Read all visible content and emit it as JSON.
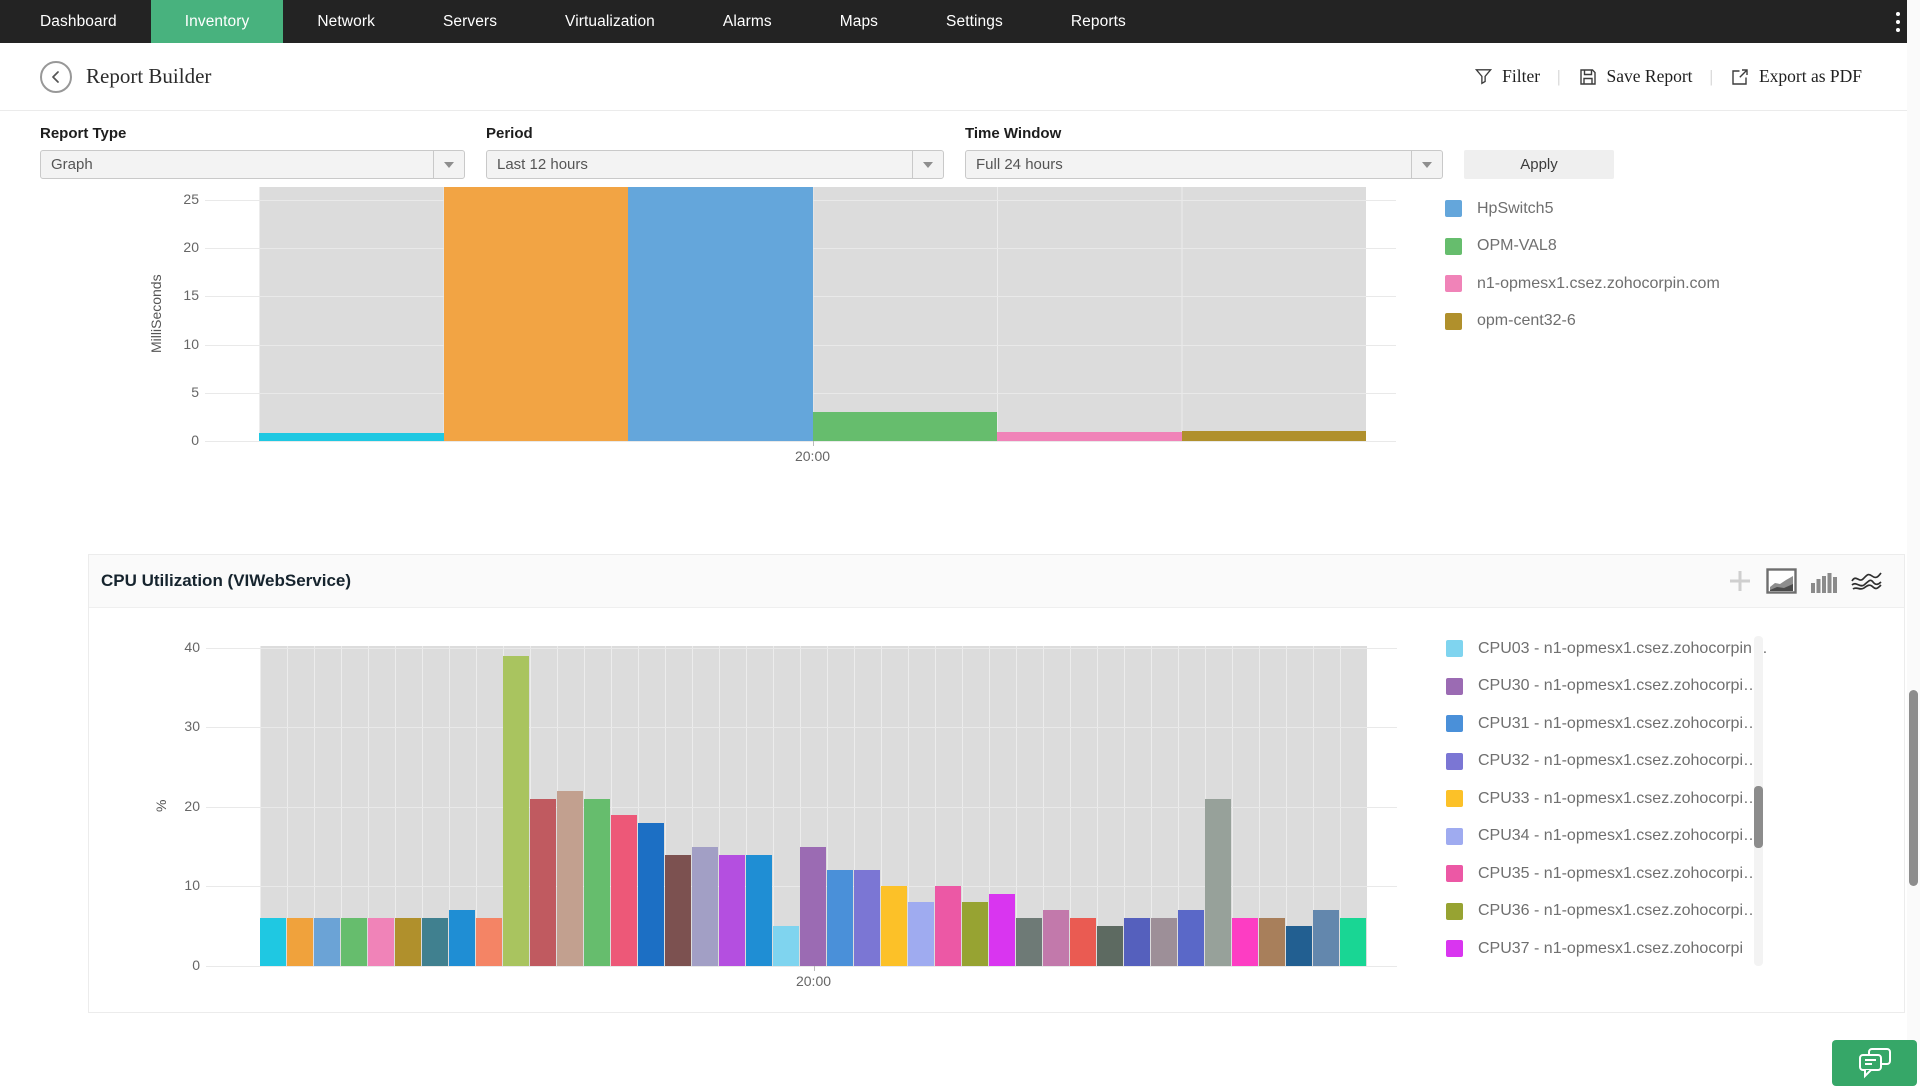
{
  "nav": {
    "background": "#232323",
    "active_color": "#48b27e",
    "kebab_icon": "kebab-menu-icon",
    "items": [
      {
        "label": "Dashboard",
        "active": false
      },
      {
        "label": "Inventory",
        "active": true
      },
      {
        "label": "Network",
        "active": false
      },
      {
        "label": "Servers",
        "active": false
      },
      {
        "label": "Virtualization",
        "active": false
      },
      {
        "label": "Alarms",
        "active": false
      },
      {
        "label": "Maps",
        "active": false
      },
      {
        "label": "Settings",
        "active": false
      },
      {
        "label": "Reports",
        "active": false
      }
    ]
  },
  "header": {
    "title": "Report Builder",
    "back_icon": "back-arrow-icon",
    "actions": [
      {
        "label": "Filter",
        "icon": "filter-icon"
      },
      {
        "label": "Save Report",
        "icon": "save-icon"
      },
      {
        "label": "Export as PDF",
        "icon": "export-icon"
      }
    ]
  },
  "controls": {
    "report_type": {
      "label": "Report Type",
      "value": "Graph"
    },
    "period": {
      "label": "Period",
      "value": "Last 12 hours"
    },
    "time_window": {
      "label": "Time Window",
      "value": "Full 24 hours"
    },
    "apply_label": "Apply"
  },
  "section": {
    "title": "CPU Utilization (VIWebService)",
    "icons": [
      "add-icon",
      "area-chart-icon",
      "bar-chart-icon",
      "stream-chart-icon"
    ]
  },
  "chat_button": {
    "icon": "chat-icon",
    "color": "#36a768"
  },
  "chart_data": [
    {
      "type": "bar",
      "title": "",
      "ylabel": "MilliSeconds",
      "xlabel": "",
      "yticks": [
        0,
        5,
        10,
        15,
        20,
        25
      ],
      "ylim": [
        0,
        26.3
      ],
      "grid": true,
      "plot_background": "#dcdcdc",
      "xticks": [
        {
          "label": "20:00",
          "frac": 0.5
        }
      ],
      "legend_position": "right",
      "bars": [
        {
          "color": "#1fc8e2",
          "value": 0.8
        },
        {
          "color": "#f2a444",
          "value": 26.3,
          "clipped": true
        },
        {
          "color": "#64a6db",
          "value": 26.3,
          "clipped": true,
          "name": "HpSwitch5"
        },
        {
          "color": "#66bd6d",
          "value": 3,
          "name": "OPM-VAL8"
        },
        {
          "color": "#f083b8",
          "value": 0.9,
          "name": "n1-opmesx1.csez.zohocorpin.com"
        },
        {
          "color": "#b0902c",
          "value": 1,
          "name": "opm-cent32-6"
        }
      ],
      "legend": {
        "items": [
          {
            "label": "HpSwitch5",
            "color": "#64a6db"
          },
          {
            "label": "OPM-VAL8",
            "color": "#66bd6d"
          },
          {
            "label": "n1-opmesx1.csez.zohocorpin.com",
            "color": "#f083b8"
          },
          {
            "label": "opm-cent32-6",
            "color": "#b0902c"
          }
        ]
      }
    },
    {
      "type": "bar",
      "title": "CPU Utilization (VIWebService)",
      "ylabel": "%",
      "xlabel": "",
      "yticks": [
        0,
        10,
        20,
        30,
        40
      ],
      "ylim": [
        0,
        40.2
      ],
      "grid": true,
      "plot_background": "#dcdcdc",
      "xticks": [
        {
          "label": "20:00",
          "frac": 0.5
        }
      ],
      "legend_position": "right",
      "bars": [
        {
          "color": "#1fc8e2",
          "value": 6
        },
        {
          "color": "#f0a23c",
          "value": 6
        },
        {
          "color": "#6ba3d6",
          "value": 6
        },
        {
          "color": "#66bd6d",
          "value": 6
        },
        {
          "color": "#f083b8",
          "value": 6
        },
        {
          "color": "#b0902c",
          "value": 6
        },
        {
          "color": "#40808f",
          "value": 6
        },
        {
          "color": "#1f8ed4",
          "value": 7
        },
        {
          "color": "#f48465",
          "value": 6
        },
        {
          "color": "#a9c45f",
          "value": 39
        },
        {
          "color": "#c05a60",
          "value": 21
        },
        {
          "color": "#c2a08f",
          "value": 22
        },
        {
          "color": "#66bd6d",
          "value": 21
        },
        {
          "color": "#ed5878",
          "value": 19
        },
        {
          "color": "#1c6fc4",
          "value": 18
        },
        {
          "color": "#7c5150",
          "value": 14
        },
        {
          "color": "#a29fc5",
          "value": 15
        },
        {
          "color": "#b44fe0",
          "value": 14
        },
        {
          "color": "#1f8ed4",
          "value": 14
        },
        {
          "color": "#7fd4ef",
          "value": 5,
          "name": "CPU03"
        },
        {
          "color": "#9b6bb3",
          "value": 15,
          "name": "CPU30"
        },
        {
          "color": "#4a90d9",
          "value": 12,
          "name": "CPU31"
        },
        {
          "color": "#7b76d4",
          "value": 12,
          "name": "CPU32"
        },
        {
          "color": "#fcc128",
          "value": 10,
          "name": "CPU33"
        },
        {
          "color": "#9fabf0",
          "value": 8,
          "name": "CPU34"
        },
        {
          "color": "#ec58a5",
          "value": 10,
          "name": "CPU35"
        },
        {
          "color": "#97a332",
          "value": 8,
          "name": "CPU36"
        },
        {
          "color": "#d935f0",
          "value": 9,
          "name": "CPU37"
        },
        {
          "color": "#6e7a76",
          "value": 6
        },
        {
          "color": "#c279ab",
          "value": 7
        },
        {
          "color": "#ea5b52",
          "value": 6
        },
        {
          "color": "#5d6a61",
          "value": 5
        },
        {
          "color": "#5560bd",
          "value": 6
        },
        {
          "color": "#9d8f98",
          "value": 6
        },
        {
          "color": "#5a68c8",
          "value": 7
        },
        {
          "color": "#97a19a",
          "value": 21
        },
        {
          "color": "#fd3dc3",
          "value": 6
        },
        {
          "color": "#a87f5b",
          "value": 6
        },
        {
          "color": "#225f91",
          "value": 5
        },
        {
          "color": "#6387ad",
          "value": 7
        },
        {
          "color": "#19d694",
          "value": 6
        }
      ],
      "legend": {
        "scrollbar": true,
        "items": [
          {
            "label": "CPU03 - n1-opmesx1.csez.zohocorpin…",
            "color": "#7fd4ef",
            "clipped": "top"
          },
          {
            "label": "CPU30 - n1-opmesx1.csez.zohocorpi…",
            "color": "#9b6bb3"
          },
          {
            "label": "CPU31 - n1-opmesx1.csez.zohocorpi…",
            "color": "#4a90d9"
          },
          {
            "label": "CPU32 - n1-opmesx1.csez.zohocorpi…",
            "color": "#7b76d4"
          },
          {
            "label": "CPU33 - n1-opmesx1.csez.zohocorpi…",
            "color": "#fcc128"
          },
          {
            "label": "CPU34 - n1-opmesx1.csez.zohocorpi…",
            "color": "#9fabf0"
          },
          {
            "label": "CPU35 - n1-opmesx1.csez.zohocorpi…",
            "color": "#ec58a5"
          },
          {
            "label": "CPU36 - n1-opmesx1.csez.zohocorpi…",
            "color": "#97a332"
          },
          {
            "label": "CPU37 - n1-opmesx1.csez.zohocorpi",
            "color": "#d935f0",
            "clipped": "bottom"
          }
        ]
      }
    }
  ]
}
